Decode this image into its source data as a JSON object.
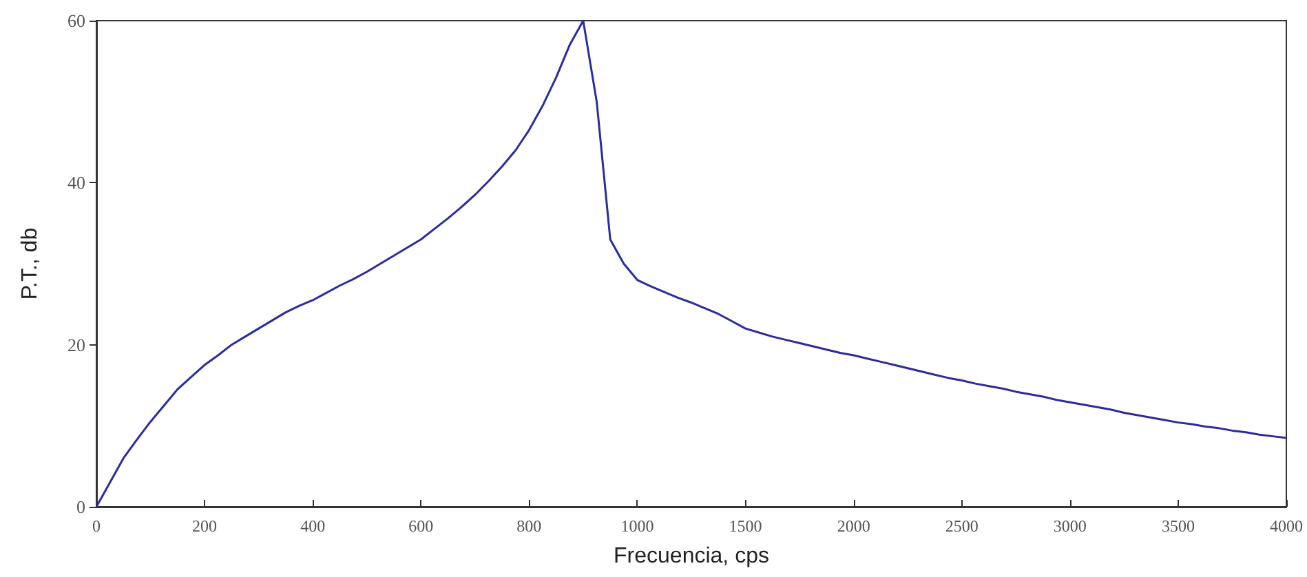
{
  "chart_data": {
    "type": "line",
    "xlabel": "Frecuencia, cps",
    "ylabel": "P.T., db",
    "categories": [
      "0",
      null,
      null,
      null,
      null,
      null,
      null,
      null,
      "200",
      null,
      null,
      null,
      null,
      null,
      null,
      null,
      "400",
      null,
      null,
      null,
      null,
      null,
      null,
      null,
      "600",
      null,
      null,
      null,
      null,
      null,
      null,
      null,
      "800",
      null,
      null,
      null,
      null,
      null,
      null,
      null,
      "1000",
      null,
      null,
      null,
      null,
      null,
      null,
      null,
      "1500",
      null,
      null,
      null,
      null,
      null,
      null,
      null,
      "2000",
      null,
      null,
      null,
      null,
      null,
      null,
      null,
      "2500",
      null,
      null,
      null,
      null,
      null,
      null,
      null,
      "3000",
      null,
      null,
      null,
      null,
      null,
      null,
      null,
      "3500",
      null,
      null,
      null,
      null,
      null,
      null,
      null,
      "4000"
    ],
    "series": [
      {
        "color": "#2b2ba3",
        "values": [
          0,
          3,
          6,
          8.3,
          10.5,
          12.5,
          14.5,
          16,
          17.5,
          18.7,
          20,
          21,
          22,
          23,
          24,
          24.8,
          25.5,
          26.4,
          27.3,
          28.1,
          29,
          30,
          31,
          32,
          33,
          34.3,
          35.6,
          37,
          38.5,
          40.2,
          42,
          44,
          46.5,
          49.5,
          53,
          57,
          60,
          50,
          33,
          30,
          28,
          27.2,
          26.5,
          25.8,
          25.2,
          24.5,
          23.8,
          22.9,
          22,
          21.5,
          21,
          20.6,
          20.2,
          19.8,
          19.4,
          19,
          18.7,
          18.3,
          17.9,
          17.5,
          17.1,
          16.7,
          16.3,
          15.9,
          15.6,
          15.2,
          14.9,
          14.6,
          14.2,
          13.9,
          13.6,
          13.2,
          12.9,
          12.6,
          12.3,
          12,
          11.6,
          11.3,
          11,
          10.7,
          10.4,
          10.2,
          9.9,
          9.7,
          9.4,
          9.2,
          8.9,
          8.7,
          8.5
        ]
      }
    ],
    "ylim": [
      0,
      60
    ],
    "yticks": [
      0,
      20,
      40,
      60
    ],
    "grid": false,
    "marker": "none",
    "line_style": "solid"
  }
}
